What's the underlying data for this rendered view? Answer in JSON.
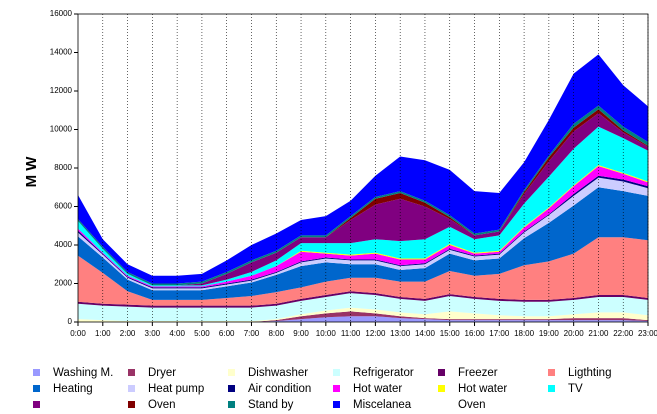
{
  "chart_data": {
    "type": "stacked_area",
    "y_label": "M W",
    "categories": [
      "0:00",
      "1:00",
      "2:00",
      "3:00",
      "4:00",
      "5:00",
      "6:00",
      "7:00",
      "8:00",
      "9:00",
      "10:00",
      "11:00",
      "12:00",
      "13:00",
      "14:00",
      "15:00",
      "16:00",
      "17:00",
      "18:00",
      "19:00",
      "20:00",
      "21:00",
      "22:00",
      "23:00"
    ],
    "ylim": [
      0,
      16000
    ],
    "yticks": [
      0,
      2000,
      4000,
      6000,
      8000,
      10000,
      12000,
      14000,
      16000
    ],
    "grid": "x",
    "series": [
      {
        "name": "Washing M.",
        "color": "#9999ff",
        "values": [
          0,
          0,
          0,
          0,
          0,
          0,
          0,
          0,
          50,
          150,
          250,
          300,
          300,
          200,
          150,
          100,
          100,
          100,
          100,
          100,
          100,
          100,
          100,
          50
        ]
      },
      {
        "name": "Dryer",
        "color": "#993366",
        "values": [
          0,
          0,
          0,
          0,
          0,
          0,
          0,
          0,
          50,
          150,
          200,
          250,
          150,
          100,
          50,
          50,
          50,
          50,
          50,
          50,
          100,
          100,
          100,
          50
        ]
      },
      {
        "name": "Dishwasher",
        "color": "#ffffcc",
        "values": [
          150,
          100,
          50,
          50,
          50,
          50,
          50,
          50,
          50,
          100,
          150,
          200,
          200,
          200,
          200,
          400,
          300,
          200,
          150,
          150,
          200,
          300,
          300,
          250
        ]
      },
      {
        "name": "Refrigerator",
        "color": "#ccffff",
        "values": [
          800,
          750,
          750,
          700,
          700,
          700,
          700,
          700,
          700,
          700,
          700,
          750,
          750,
          700,
          700,
          800,
          750,
          750,
          750,
          750,
          750,
          800,
          800,
          800
        ]
      },
      {
        "name": "Freezer",
        "color": "#660066",
        "values": [
          100,
          100,
          100,
          100,
          100,
          100,
          100,
          100,
          100,
          100,
          100,
          100,
          100,
          100,
          100,
          100,
          100,
          100,
          100,
          100,
          100,
          100,
          100,
          100
        ]
      },
      {
        "name": "Ligthting",
        "color": "#ff8080",
        "values": [
          2400,
          1600,
          700,
          300,
          300,
          300,
          400,
          500,
          600,
          600,
          700,
          700,
          800,
          800,
          900,
          1200,
          1100,
          1300,
          1800,
          2000,
          2300,
          3000,
          3000,
          3000
        ]
      },
      {
        "name": "Heating",
        "color": "#0066cc",
        "values": [
          1000,
          800,
          600,
          500,
          500,
          500,
          600,
          700,
          900,
          1100,
          1000,
          700,
          700,
          600,
          700,
          900,
          800,
          800,
          1400,
          2000,
          2500,
          2600,
          2400,
          2300
        ]
      },
      {
        "name": "Heat pump",
        "color": "#ccccff",
        "values": [
          200,
          150,
          100,
          100,
          100,
          100,
          100,
          100,
          100,
          200,
          200,
          200,
          200,
          200,
          200,
          200,
          200,
          200,
          300,
          400,
          500,
          500,
          500,
          400
        ]
      },
      {
        "name": "Air condition",
        "color": "#000080",
        "values": [
          100,
          50,
          50,
          50,
          50,
          50,
          50,
          50,
          50,
          50,
          50,
          50,
          50,
          50,
          50,
          50,
          50,
          50,
          50,
          50,
          100,
          100,
          100,
          100
        ]
      },
      {
        "name": "Hot water",
        "color": "#ff00ff",
        "values": [
          100,
          50,
          50,
          50,
          50,
          50,
          100,
          200,
          300,
          500,
          200,
          200,
          300,
          300,
          200,
          200,
          100,
          100,
          200,
          300,
          400,
          500,
          300,
          200
        ]
      },
      {
        "name": "Hot water",
        "color": "#ffff00",
        "values": [
          0,
          0,
          0,
          0,
          0,
          0,
          0,
          0,
          0,
          50,
          50,
          50,
          50,
          50,
          50,
          50,
          50,
          50,
          50,
          50,
          50,
          50,
          50,
          50
        ]
      },
      {
        "name": "TV",
        "color": "#00ffff",
        "values": [
          400,
          200,
          100,
          50,
          50,
          50,
          100,
          200,
          300,
          400,
          500,
          600,
          700,
          900,
          1000,
          900,
          700,
          800,
          1200,
          1600,
          1900,
          2000,
          1800,
          1600
        ]
      },
      {
        "name": null,
        "color": "#800080",
        "values": [
          0,
          0,
          0,
          0,
          0,
          100,
          300,
          500,
          400,
          300,
          300,
          1200,
          1800,
          2200,
          1700,
          400,
          200,
          200,
          500,
          800,
          900,
          700,
          300,
          200
        ]
      },
      {
        "name": "Oven",
        "color": "#800000",
        "values": [
          0,
          0,
          0,
          0,
          0,
          0,
          0,
          0,
          0,
          0,
          0,
          100,
          300,
          300,
          200,
          100,
          0,
          0,
          100,
          200,
          200,
          200,
          100,
          50
        ]
      },
      {
        "name": "Stand by",
        "color": "#008080",
        "values": [
          100,
          100,
          100,
          100,
          100,
          100,
          100,
          100,
          100,
          100,
          100,
          100,
          100,
          100,
          100,
          100,
          100,
          100,
          100,
          100,
          200,
          200,
          200,
          200
        ]
      },
      {
        "name": "Miscelanea",
        "color": "#0000ff",
        "values": [
          1250,
          400,
          400,
          400,
          400,
          400,
          600,
          800,
          900,
          800,
          1000,
          800,
          1100,
          1800,
          2100,
          2350,
          2200,
          1900,
          1450,
          1850,
          2600,
          2650,
          2150,
          1850
        ]
      }
    ],
    "legend_text": [
      "Oven"
    ]
  }
}
